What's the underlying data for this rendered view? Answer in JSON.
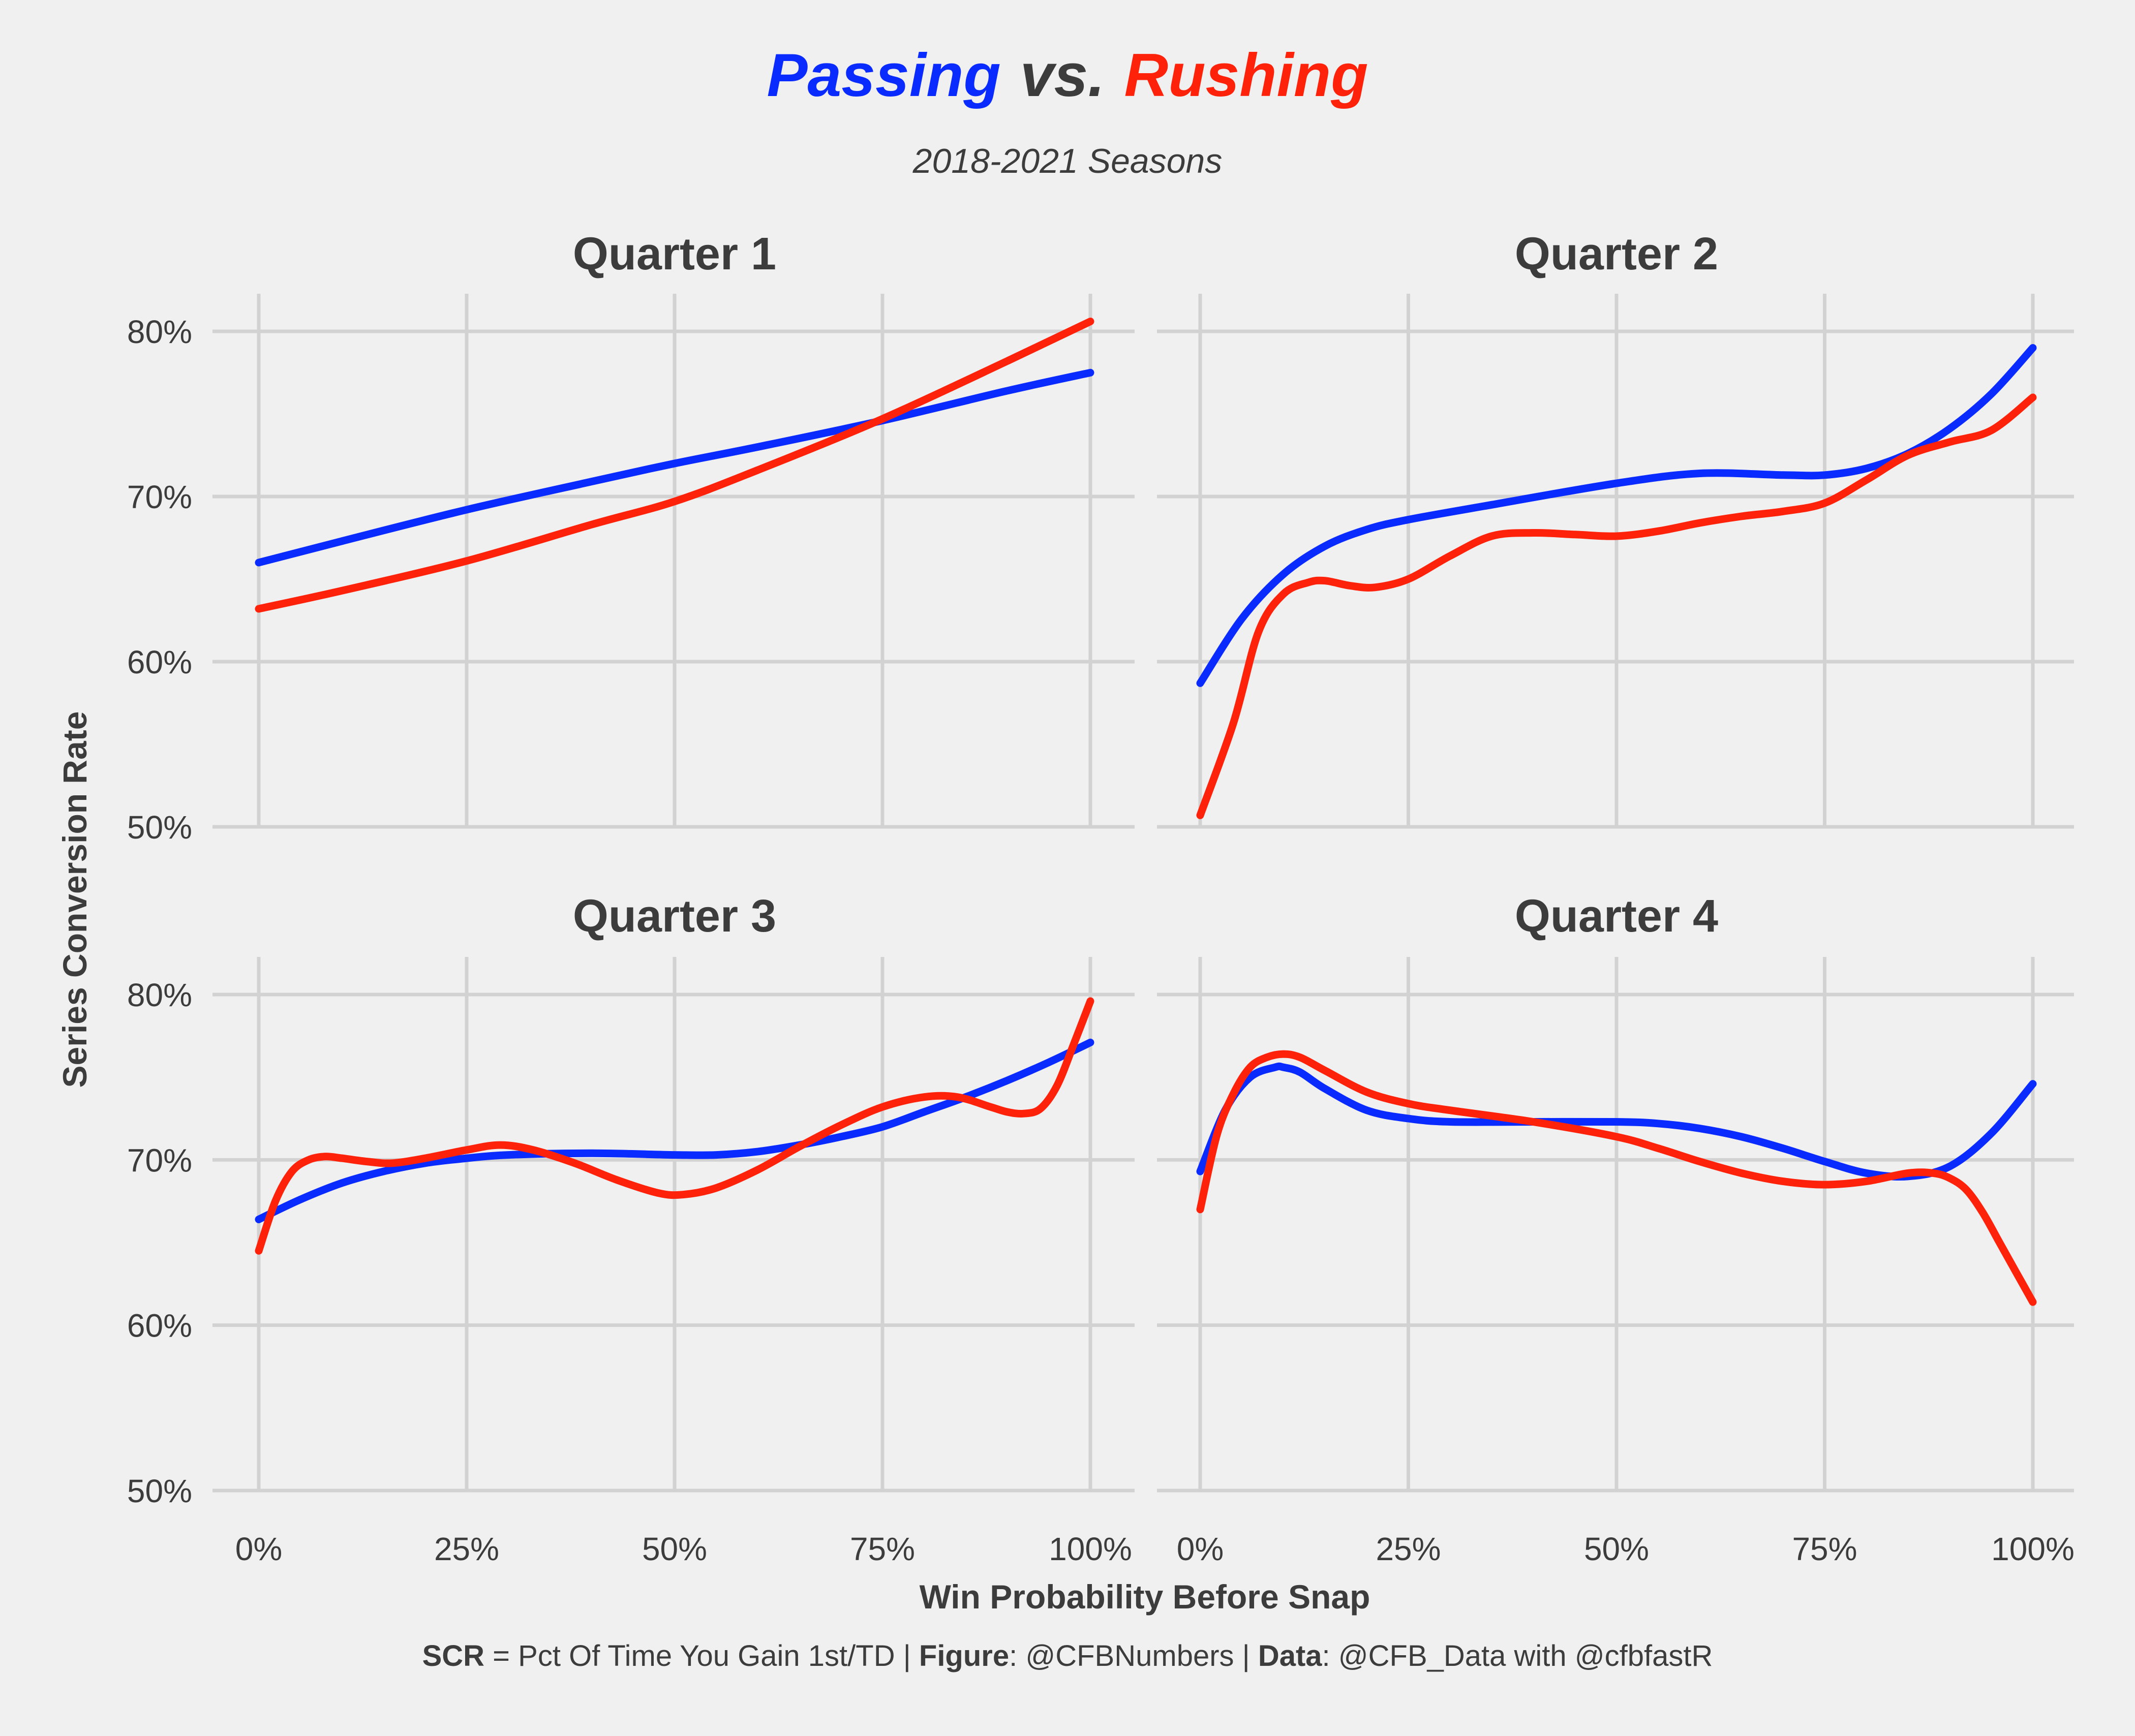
{
  "title": {
    "part1": "Passing",
    "part2": "vs.",
    "part3": "Rushing"
  },
  "subtitle": "2018-2021 Seasons",
  "caption": {
    "b1": "SCR",
    "t1": " = Pct Of Time You Gain 1st/TD | ",
    "b2": "Figure",
    "t2": ": @CFBNumbers | ",
    "b3": "Data",
    "t3": ": @CFB_Data with @cfbfastR"
  },
  "colors": {
    "passing": "#0a2bff",
    "rushing": "#ff220a",
    "background": "#f0f0f0",
    "grid": "#d2d2d2"
  },
  "chart_data": {
    "type": "line",
    "xlabel": "Win Probability Before Snap",
    "ylabel": "Series Conversion Rate",
    "x_ticks": [
      0,
      25,
      50,
      75,
      100
    ],
    "x_tick_labels": [
      "0%",
      "25%",
      "50%",
      "75%",
      "100%"
    ],
    "y_ticks": [
      50,
      60,
      70,
      80
    ],
    "y_tick_labels": [
      "50%",
      "60%",
      "70%",
      "80%"
    ],
    "xlim": [
      0,
      100
    ],
    "ylim": [
      50,
      80
    ],
    "grid": true,
    "legend": "none (series identified by title colors)",
    "facets": [
      {
        "title": "Quarter 1",
        "series": [
          {
            "name": "Passing",
            "color": "#0a2bff",
            "x": [
              0,
              10,
              25,
              40,
              50,
              60,
              75,
              90,
              100
            ],
            "y": [
              66.0,
              67.3,
              69.2,
              70.9,
              72.0,
              73.0,
              74.6,
              76.4,
              77.5
            ]
          },
          {
            "name": "Rushing",
            "color": "#ff220a",
            "x": [
              0,
              10,
              25,
              40,
              50,
              60,
              75,
              90,
              100
            ],
            "y": [
              63.2,
              64.3,
              66.1,
              68.3,
              69.7,
              71.6,
              74.7,
              78.2,
              80.6
            ]
          }
        ]
      },
      {
        "title": "Quarter 2",
        "series": [
          {
            "name": "Passing",
            "color": "#0a2bff",
            "x": [
              0,
              5,
              10,
              15,
              20,
              25,
              35,
              50,
              60,
              70,
              75,
              80,
              85,
              90,
              95,
              100
            ],
            "y": [
              58.7,
              62.6,
              65.3,
              67.0,
              68.0,
              68.6,
              69.5,
              70.8,
              71.4,
              71.3,
              71.3,
              71.7,
              72.6,
              74.1,
              76.2,
              79.0
            ]
          },
          {
            "name": "Rushing",
            "color": "#ff220a",
            "x": [
              0,
              4,
              7,
              10,
              13,
              15,
              18,
              21,
              25,
              30,
              35,
              40,
              45,
              50,
              55,
              60,
              65,
              70,
              75,
              80,
              85,
              90,
              95,
              100
            ],
            "y": [
              50.7,
              56.3,
              61.8,
              64.1,
              64.8,
              64.9,
              64.6,
              64.5,
              65.0,
              66.4,
              67.6,
              67.8,
              67.7,
              67.6,
              67.9,
              68.4,
              68.8,
              69.1,
              69.6,
              71.0,
              72.5,
              73.3,
              74.0,
              76.0
            ]
          }
        ]
      },
      {
        "title": "Quarter 3",
        "series": [
          {
            "name": "Passing",
            "color": "#0a2bff",
            "x": [
              0,
              5,
              10,
              15,
              20,
              25,
              30,
              40,
              50,
              55,
              60,
              65,
              70,
              75,
              80,
              85,
              90,
              95,
              100
            ],
            "y": [
              66.4,
              67.6,
              68.6,
              69.3,
              69.8,
              70.1,
              70.3,
              70.4,
              70.3,
              70.3,
              70.5,
              70.9,
              71.4,
              72.0,
              72.9,
              73.8,
              74.8,
              75.9,
              77.1
            ]
          },
          {
            "name": "Rushing",
            "color": "#ff220a",
            "x": [
              0,
              2,
              4,
              6,
              8,
              10,
              13,
              16,
              20,
              25,
              29,
              33,
              38,
              43,
              48,
              51,
              55,
              60,
              65,
              70,
              75,
              80,
              84,
              88,
              90,
              92,
              94,
              96,
              98,
              100
            ],
            "y": [
              64.5,
              67.5,
              69.3,
              70.0,
              70.2,
              70.1,
              69.9,
              69.8,
              70.1,
              70.6,
              70.9,
              70.6,
              69.8,
              68.8,
              68.0,
              67.9,
              68.3,
              69.4,
              70.8,
              72.1,
              73.2,
              73.8,
              73.8,
              73.2,
              72.9,
              72.8,
              73.1,
              74.5,
              77.0,
              79.6
            ]
          }
        ]
      },
      {
        "title": "Quarter 4",
        "series": [
          {
            "name": "Passing",
            "color": "#0a2bff",
            "x": [
              0,
              3,
              6,
              9,
              10,
              12,
              15,
              20,
              25,
              30,
              40,
              50,
              55,
              60,
              65,
              70,
              75,
              80,
              85,
              90,
              95,
              100
            ],
            "y": [
              69.3,
              73.0,
              75.0,
              75.6,
              75.6,
              75.3,
              74.3,
              73.0,
              72.5,
              72.3,
              72.3,
              72.3,
              72.2,
              71.9,
              71.4,
              70.7,
              69.9,
              69.2,
              69.0,
              69.6,
              71.6,
              74.6
            ]
          },
          {
            "name": "Rushing",
            "color": "#ff220a",
            "x": [
              0,
              2,
              4,
              6,
              8,
              10,
              12,
              15,
              20,
              25,
              30,
              40,
              50,
              55,
              60,
              65,
              70,
              75,
              80,
              85,
              88,
              90,
              92,
              94,
              96,
              98,
              100
            ],
            "y": [
              67.0,
              71.5,
              74.0,
              75.6,
              76.2,
              76.4,
              76.2,
              75.4,
              74.1,
              73.4,
              73.0,
              72.3,
              71.4,
              70.7,
              69.9,
              69.2,
              68.7,
              68.5,
              68.7,
              69.2,
              69.2,
              68.9,
              68.2,
              66.8,
              65.0,
              63.2,
              61.4
            ]
          }
        ]
      }
    ]
  }
}
